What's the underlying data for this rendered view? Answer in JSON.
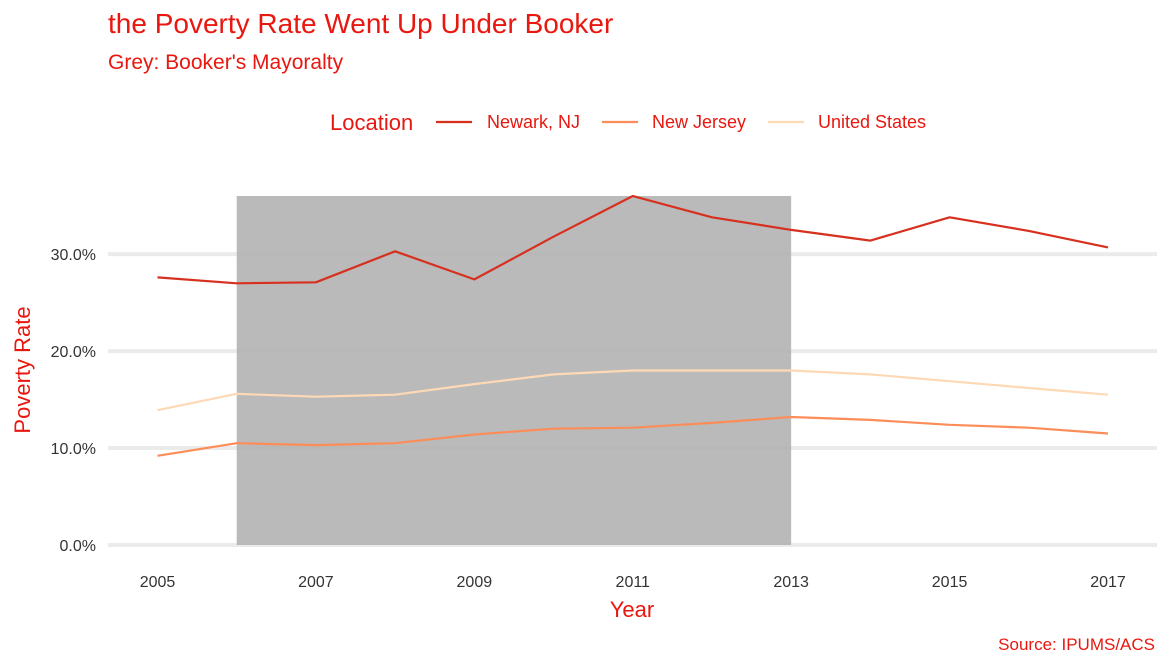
{
  "chart_data": {
    "type": "line",
    "title": "the Poverty Rate Went Up Under Booker",
    "subtitle": "Grey: Booker's Mayoralty",
    "caption": "Source: IPUMS/ACS",
    "xlabel": "Year",
    "ylabel": "Poverty Rate",
    "legend": {
      "title": "Location",
      "position": "top"
    },
    "x": [
      2005,
      2006,
      2007,
      2008,
      2009,
      2010,
      2011,
      2012,
      2013,
      2014,
      2015,
      2016,
      2017
    ],
    "xticks": [
      2005,
      2007,
      2009,
      2011,
      2013,
      2015,
      2017
    ],
    "xlim": [
      2005,
      2017
    ],
    "yticks": [
      0,
      10,
      20,
      30
    ],
    "ytick_labels": [
      "0.0%",
      "10.0%",
      "20.0%",
      "30.0%"
    ],
    "ylim": [
      0,
      36
    ],
    "grid": true,
    "shaded_region": {
      "x_start": 2006,
      "x_end": 2013,
      "color": "#b3b3b3"
    },
    "series": [
      {
        "name": "Newark, NJ",
        "color": "#d7301f",
        "values": [
          27.6,
          27.0,
          27.1,
          30.3,
          27.4,
          31.8,
          36.0,
          33.8,
          32.5,
          31.4,
          33.8,
          32.4,
          30.7
        ]
      },
      {
        "name": "New Jersey",
        "color": "#fc8d59",
        "values": [
          9.2,
          10.5,
          10.3,
          10.5,
          11.4,
          12.0,
          12.1,
          12.6,
          13.2,
          12.9,
          12.4,
          12.1,
          11.5
        ]
      },
      {
        "name": "United States",
        "color": "#fdd9b5",
        "values": [
          13.9,
          15.6,
          15.3,
          15.5,
          16.6,
          17.6,
          18.0,
          18.0,
          18.0,
          17.6,
          16.9,
          16.2,
          15.5
        ]
      }
    ]
  },
  "colors": {
    "text_accent": "#e8170f",
    "grid": "#ebebeb",
    "background": "#ffffff"
  }
}
